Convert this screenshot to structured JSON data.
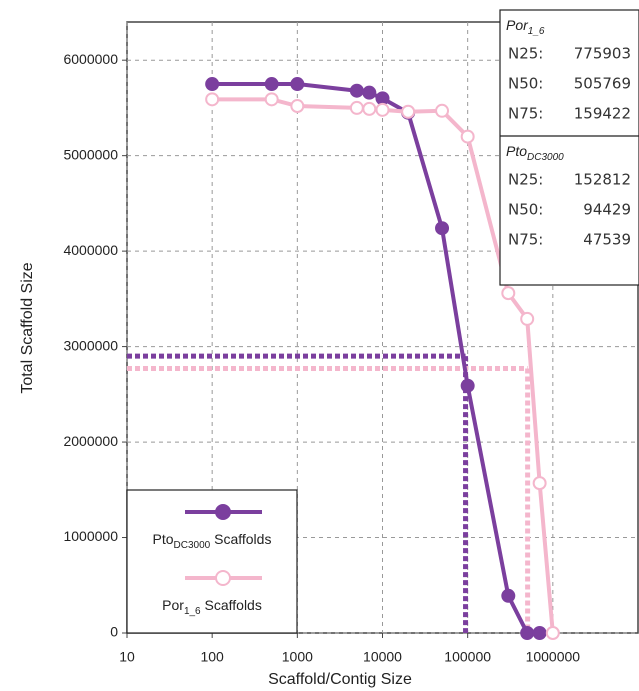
{
  "chart_data": {
    "type": "line",
    "xlabel": "Scaffold/Contig Size",
    "ylabel": "Total Scaffold Size",
    "xscale": "log",
    "grid": true,
    "xlim": [
      10,
      10000000
    ],
    "ylim": [
      0,
      6400000
    ],
    "xticks": [
      10,
      100,
      1000,
      10000,
      100000,
      1000000
    ],
    "yticks": [
      0,
      1000000,
      2000000,
      3000000,
      4000000,
      5000000,
      6000000
    ],
    "series": [
      {
        "name": [
          "Pto",
          "DC3000",
          " Scaffolds"
        ],
        "color": "#7b3f9e",
        "filled": true,
        "x": [
          100,
          500,
          1000,
          5000,
          7000,
          10000,
          20000,
          50000,
          100000,
          300000,
          500000,
          700000
        ],
        "values": [
          5750000,
          5750000,
          5750000,
          5680000,
          5660000,
          5600000,
          5450000,
          4240000,
          2590000,
          390000,
          0,
          0
        ]
      },
      {
        "name": [
          "Por",
          "1_6",
          " Scaffolds"
        ],
        "color": "#f4b6cc",
        "filled": false,
        "x": [
          100,
          500,
          1000,
          5000,
          7000,
          10000,
          20000,
          50000,
          100000,
          300000,
          500000,
          700000,
          1000000
        ],
        "values": [
          5590000,
          5590000,
          5520000,
          5500000,
          5490000,
          5480000,
          5460000,
          5470000,
          5200000,
          3560000,
          3290000,
          1570000,
          0
        ]
      }
    ],
    "guides": [
      {
        "color": "#7b3f9e",
        "x": 94429,
        "y": 2900000
      },
      {
        "color": "#f4b6cc",
        "x": 505769,
        "y": 2770000
      }
    ],
    "stats": [
      {
        "title": [
          "Por",
          "1_6"
        ],
        "rows": [
          {
            "label": "N25:",
            "value": 775903
          },
          {
            "label": "N50:",
            "value": 505769
          },
          {
            "label": "N75:",
            "value": 159422
          }
        ]
      },
      {
        "title": [
          "Pto",
          "DC3000"
        ],
        "rows": [
          {
            "label": "N25:",
            "value": 152812
          },
          {
            "label": "N50:",
            "value": 94429
          },
          {
            "label": "N75:",
            "value": 47539
          }
        ]
      }
    ]
  }
}
